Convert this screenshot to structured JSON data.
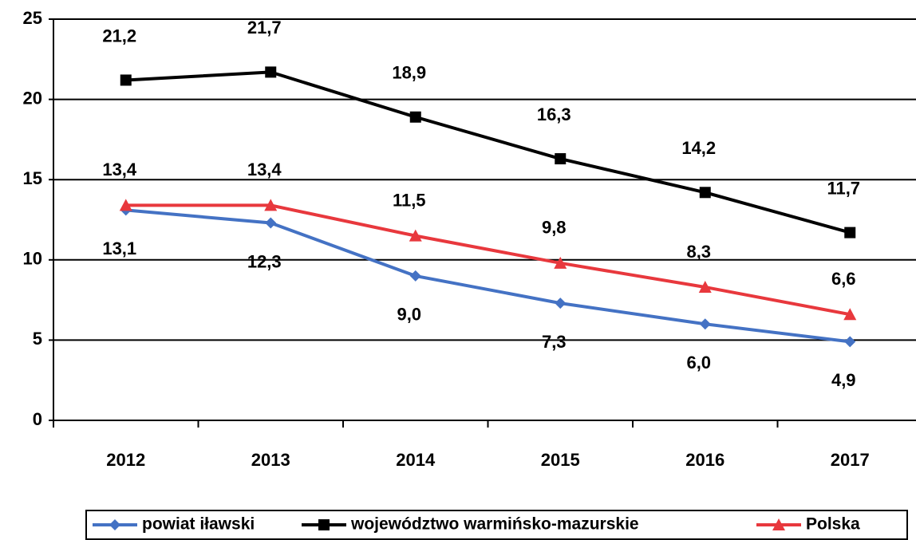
{
  "chart_data": {
    "type": "line",
    "categories": [
      "2012",
      "2013",
      "2014",
      "2015",
      "2016",
      "2017"
    ],
    "series": [
      {
        "name": "powiat iławski",
        "color": "#4472c4",
        "marker": "diamond",
        "values": [
          13.1,
          12.3,
          9.0,
          7.3,
          6.0,
          4.9
        ],
        "value_labels": [
          "13,1",
          "12,3",
          "9,0",
          "7,3",
          "6,0",
          "4,9"
        ]
      },
      {
        "name": "województwo warmińsko-mazurskie",
        "color": "#000000",
        "marker": "square",
        "values": [
          21.2,
          21.7,
          18.9,
          16.3,
          14.2,
          11.7
        ],
        "value_labels": [
          "21,2",
          "21,7",
          "18,9",
          "16,3",
          "14,2",
          "11,7"
        ]
      },
      {
        "name": "Polska",
        "color": "#e8383d",
        "marker": "triangle",
        "values": [
          13.4,
          13.4,
          11.5,
          9.8,
          8.3,
          6.6
        ],
        "value_labels": [
          "13,4",
          "13,4",
          "11,5",
          "9,8",
          "8,3",
          "6,6"
        ]
      }
    ],
    "ylim": [
      0,
      25
    ],
    "yticks": [
      0,
      5,
      10,
      15,
      20,
      25
    ],
    "grid": true,
    "legend": "bottom"
  }
}
